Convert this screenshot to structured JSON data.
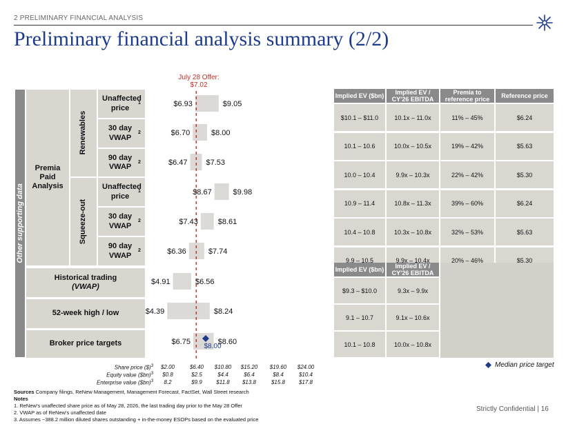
{
  "header": {
    "section": "2  PRELIMINARY FINANCIAL ANALYSIS",
    "title": "Preliminary financial analysis summary (2/2)"
  },
  "left_table": {
    "band_label": "Other supporting data",
    "group_premia": "Premia Paid Analysis",
    "sub_renewables": "Renewables",
    "sub_squeeze": "Squeeze-out",
    "rows": [
      {
        "label": "Unaffected price",
        "sup": "1"
      },
      {
        "label": "30 day VWAP",
        "sup": "2"
      },
      {
        "label": "90 day VWAP",
        "sup": "2"
      },
      {
        "label": "Unaffected price",
        "sup": "1"
      },
      {
        "label": "30 day VWAP",
        "sup": "2"
      },
      {
        "label": "90 day VWAP",
        "sup": "2"
      }
    ],
    "historical": "Historical trading",
    "historical_sub": "(VWAP)",
    "week52": "52-week high / low",
    "broker": "Broker price targets"
  },
  "chart_data": {
    "type": "bar",
    "orientation": "horizontal-range",
    "offer_label": "July 28 Offer:",
    "offer_value_label": "$7.02",
    "offer_value": 7.02,
    "xlim": [
      2.0,
      24.0
    ],
    "categories": [
      "Unaffected price",
      "30 day VWAP",
      "90 day VWAP",
      "Unaffected price",
      "30 day VWAP",
      "90 day VWAP",
      "Historical trading (VWAP)",
      "52-week high / low",
      "Broker price targets"
    ],
    "low": [
      6.93,
      6.7,
      6.47,
      8.67,
      7.43,
      6.36,
      4.91,
      4.39,
      6.75
    ],
    "high": [
      9.05,
      8.0,
      7.53,
      9.98,
      8.61,
      7.74,
      6.56,
      8.24,
      8.6
    ],
    "low_labels": [
      "$6.93",
      "$6.70",
      "$6.47",
      "$8.67",
      "$7.43",
      "$6.36",
      "$4.91",
      "$4.39",
      "$6.75"
    ],
    "high_labels": [
      "$9.05",
      "$8.00",
      "$7.53",
      "$9.98",
      "$8.61",
      "$7.74",
      "$6.56",
      "$8.24",
      "$8.60"
    ],
    "median_target": 8.0,
    "median_target_label": "$8.00",
    "axis": {
      "share_price_label": "Share price ($)",
      "equity_label": "Equity value ($bn)",
      "ev_label": "Enterprise value ($bn)",
      "label_sup": "3",
      "share_price": [
        "$2.00",
        "$6.40",
        "$10.80",
        "$15.20",
        "$19.60",
        "$24.00"
      ],
      "equity": [
        "$0.8",
        "$2.5",
        "$4.4",
        "$6.4",
        "$8.4",
        "$10.4"
      ],
      "ev": [
        "8.2",
        "$9.9",
        "$11.8",
        "$13.8",
        "$15.8",
        "$17.8"
      ]
    },
    "colors": {
      "bar": "#dcdad6",
      "offer_line": "#c0312a",
      "diamond": "#1c3b8a"
    }
  },
  "right_table": {
    "headers_top": [
      "Implied EV ($bn)",
      "Implied EV / CY'26 EBITDA",
      "Premia to reference price",
      "Reference price"
    ],
    "rows_top": [
      [
        "$10.1 – $11.0",
        "10.1x – 11.0x",
        "11% – 45%",
        "$6.24"
      ],
      [
        "10.1 – 10.6",
        "10.0x – 10.5x",
        "19% – 42%",
        "$5.63"
      ],
      [
        "10.0 – 10.4",
        "9.9x – 10.3x",
        "22% – 42%",
        "$5.30"
      ],
      [
        "10.9 – 11.4",
        "10.8x – 11.3x",
        "39% – 60%",
        "$6.24"
      ],
      [
        "10.4 – 10.8",
        "10.3x – 10.8x",
        "32% – 53%",
        "$5.63"
      ],
      [
        "9.9 – 10.5",
        "9.9x – 10.4x",
        "20% – 46%",
        "$5.30"
      ]
    ],
    "headers_bottom": [
      "Implied EV ($bn)",
      "Implied EV / CY'26 EBITDA"
    ],
    "rows_bottom": [
      [
        "$9.3 – $10.0",
        "9.3x – 9.9x"
      ],
      [
        "9.1 – 10.7",
        "9.1x – 10.6x"
      ],
      [
        "10.1 – 10.8",
        "10.0x – 10.8x"
      ]
    ]
  },
  "legend": {
    "median": "Median price target"
  },
  "footer": {
    "sources_bold": "Sources",
    "sources": " Company filings, ReNew Management, Management Forecast, FactSet, Wall Street research",
    "notes_title": "Notes",
    "notes": [
      "1.    ReNew's unaffected share price as of May 28, 2026, the last trading day prior to the May 28 Offer",
      "2.    VWAP as of ReNew's unaffected date",
      "3.    Assumes ~388.2 million diluted shares outstanding + in-the-money ESOPs based on the evaluated price"
    ],
    "confidential": "Strictly Confidential | 16"
  }
}
